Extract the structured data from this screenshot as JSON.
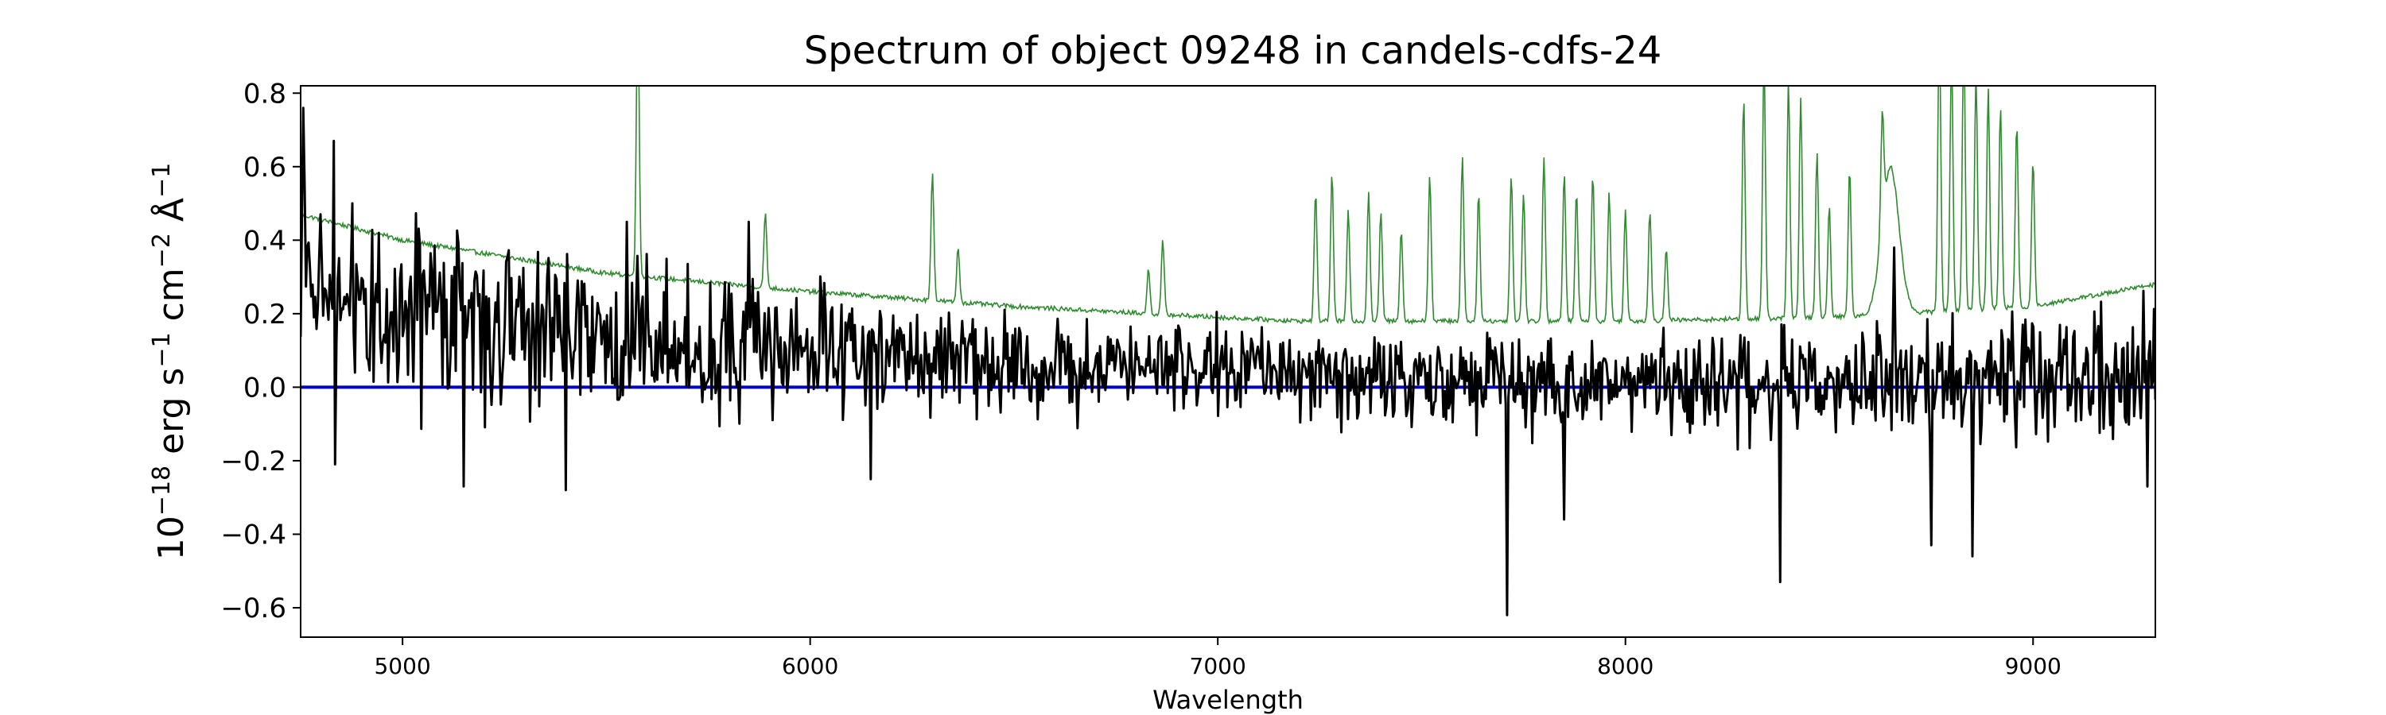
{
  "chart_data": {
    "type": "line",
    "title": "Spectrum of object 09248 in candels-cdfs-24",
    "xlabel": "Wavelength",
    "ylabel_parts": {
      "base": "10",
      "exp": "−18",
      "unit1": " erg s",
      "unit1_exp": "−1",
      "unit2": " cm",
      "unit2_exp": "−2",
      "unit3": " Å",
      "unit3_exp": "−1"
    },
    "xlim": [
      4750,
      9300
    ],
    "ylim": [
      -0.68,
      0.82
    ],
    "xticks": [
      5000,
      6000,
      7000,
      8000,
      9000
    ],
    "xtick_labels": [
      "5000",
      "6000",
      "7000",
      "8000",
      "9000"
    ],
    "yticks": [
      -0.6,
      -0.4,
      -0.2,
      0.0,
      0.2,
      0.4,
      0.6,
      0.8
    ],
    "ytick_labels": [
      "−0.6",
      "−0.4",
      "−0.2",
      "0.0",
      "0.2",
      "0.4",
      "0.6",
      "0.8"
    ],
    "grid": false,
    "colors": {
      "flux": "#000000",
      "error": "#2e8b2e",
      "zero": "#0000cc"
    },
    "series": [
      {
        "role": "flux",
        "x_start": 4750,
        "x_end": 9300,
        "n": 1400,
        "seed": 9248,
        "baseline_points": [
          [
            4750,
            0.28
          ],
          [
            5000,
            0.2
          ],
          [
            5500,
            0.15
          ],
          [
            6000,
            0.1
          ],
          [
            6500,
            0.07
          ],
          [
            7000,
            0.05
          ],
          [
            7500,
            0.02
          ],
          [
            8000,
            0.0
          ],
          [
            8500,
            0.0
          ],
          [
            9000,
            0.02
          ],
          [
            9300,
            0.04
          ]
        ],
        "noise_points": [
          [
            4750,
            0.2
          ],
          [
            5500,
            0.17
          ],
          [
            6200,
            0.11
          ],
          [
            7000,
            0.09
          ],
          [
            7600,
            0.11
          ],
          [
            8000,
            0.1
          ],
          [
            8500,
            0.11
          ],
          [
            9000,
            0.14
          ],
          [
            9300,
            0.15
          ]
        ],
        "spikes": [
          [
            4755,
            0.76
          ],
          [
            4830,
            0.67
          ],
          [
            4835,
            -0.21
          ],
          [
            5150,
            -0.27
          ],
          [
            5400,
            -0.28
          ],
          [
            5550,
            0.45
          ],
          [
            5850,
            0.45
          ],
          [
            6150,
            -0.25
          ],
          [
            7710,
            -0.62
          ],
          [
            7850,
            -0.36
          ],
          [
            8380,
            -0.53
          ],
          [
            8660,
            0.38
          ],
          [
            8750,
            -0.43
          ],
          [
            8850,
            -0.46
          ],
          [
            9280,
            -0.27
          ]
        ]
      },
      {
        "role": "error",
        "x_start": 4750,
        "x_end": 9300,
        "n": 1800,
        "continuum_points": [
          [
            4750,
            0.47
          ],
          [
            5000,
            0.4
          ],
          [
            5500,
            0.31
          ],
          [
            6000,
            0.26
          ],
          [
            6500,
            0.22
          ],
          [
            7000,
            0.19
          ],
          [
            7200,
            0.18
          ],
          [
            7500,
            0.18
          ],
          [
            8000,
            0.18
          ],
          [
            8500,
            0.19
          ],
          [
            9000,
            0.22
          ],
          [
            9300,
            0.28
          ]
        ],
        "sky_lines": [
          [
            5577,
            0.75
          ],
          [
            5890,
            0.2
          ],
          [
            6300,
            0.35
          ],
          [
            6363,
            0.15
          ],
          [
            6830,
            0.12
          ],
          [
            6865,
            0.2
          ],
          [
            7240,
            0.35
          ],
          [
            7280,
            0.4
          ],
          [
            7320,
            0.3
          ],
          [
            7370,
            0.35
          ],
          [
            7400,
            0.3
          ],
          [
            7450,
            0.25
          ],
          [
            7520,
            0.4
          ],
          [
            7600,
            0.45
          ],
          [
            7640,
            0.35
          ],
          [
            7720,
            0.4
          ],
          [
            7750,
            0.35
          ],
          [
            7800,
            0.45
          ],
          [
            7850,
            0.4
          ],
          [
            7880,
            0.35
          ],
          [
            7920,
            0.4
          ],
          [
            7960,
            0.35
          ],
          [
            8000,
            0.3
          ],
          [
            8060,
            0.3
          ],
          [
            8100,
            0.2
          ],
          [
            8290,
            0.6
          ],
          [
            8340,
            0.7
          ],
          [
            8400,
            0.65
          ],
          [
            8430,
            0.6
          ],
          [
            8470,
            0.45
          ],
          [
            8500,
            0.3
          ],
          [
            8550,
            0.4
          ],
          [
            8630,
            0.3
          ],
          [
            8770,
            0.8
          ],
          [
            8800,
            0.7
          ],
          [
            8830,
            0.75
          ],
          [
            8860,
            0.65
          ],
          [
            8890,
            0.6
          ],
          [
            8920,
            0.55
          ],
          [
            8960,
            0.5
          ],
          [
            9000,
            0.4
          ]
        ],
        "bumps": [
          [
            8650,
            0.4,
            30
          ]
        ]
      },
      {
        "role": "zero",
        "x": [
          4750,
          9300
        ],
        "y": [
          0,
          0
        ]
      }
    ]
  }
}
